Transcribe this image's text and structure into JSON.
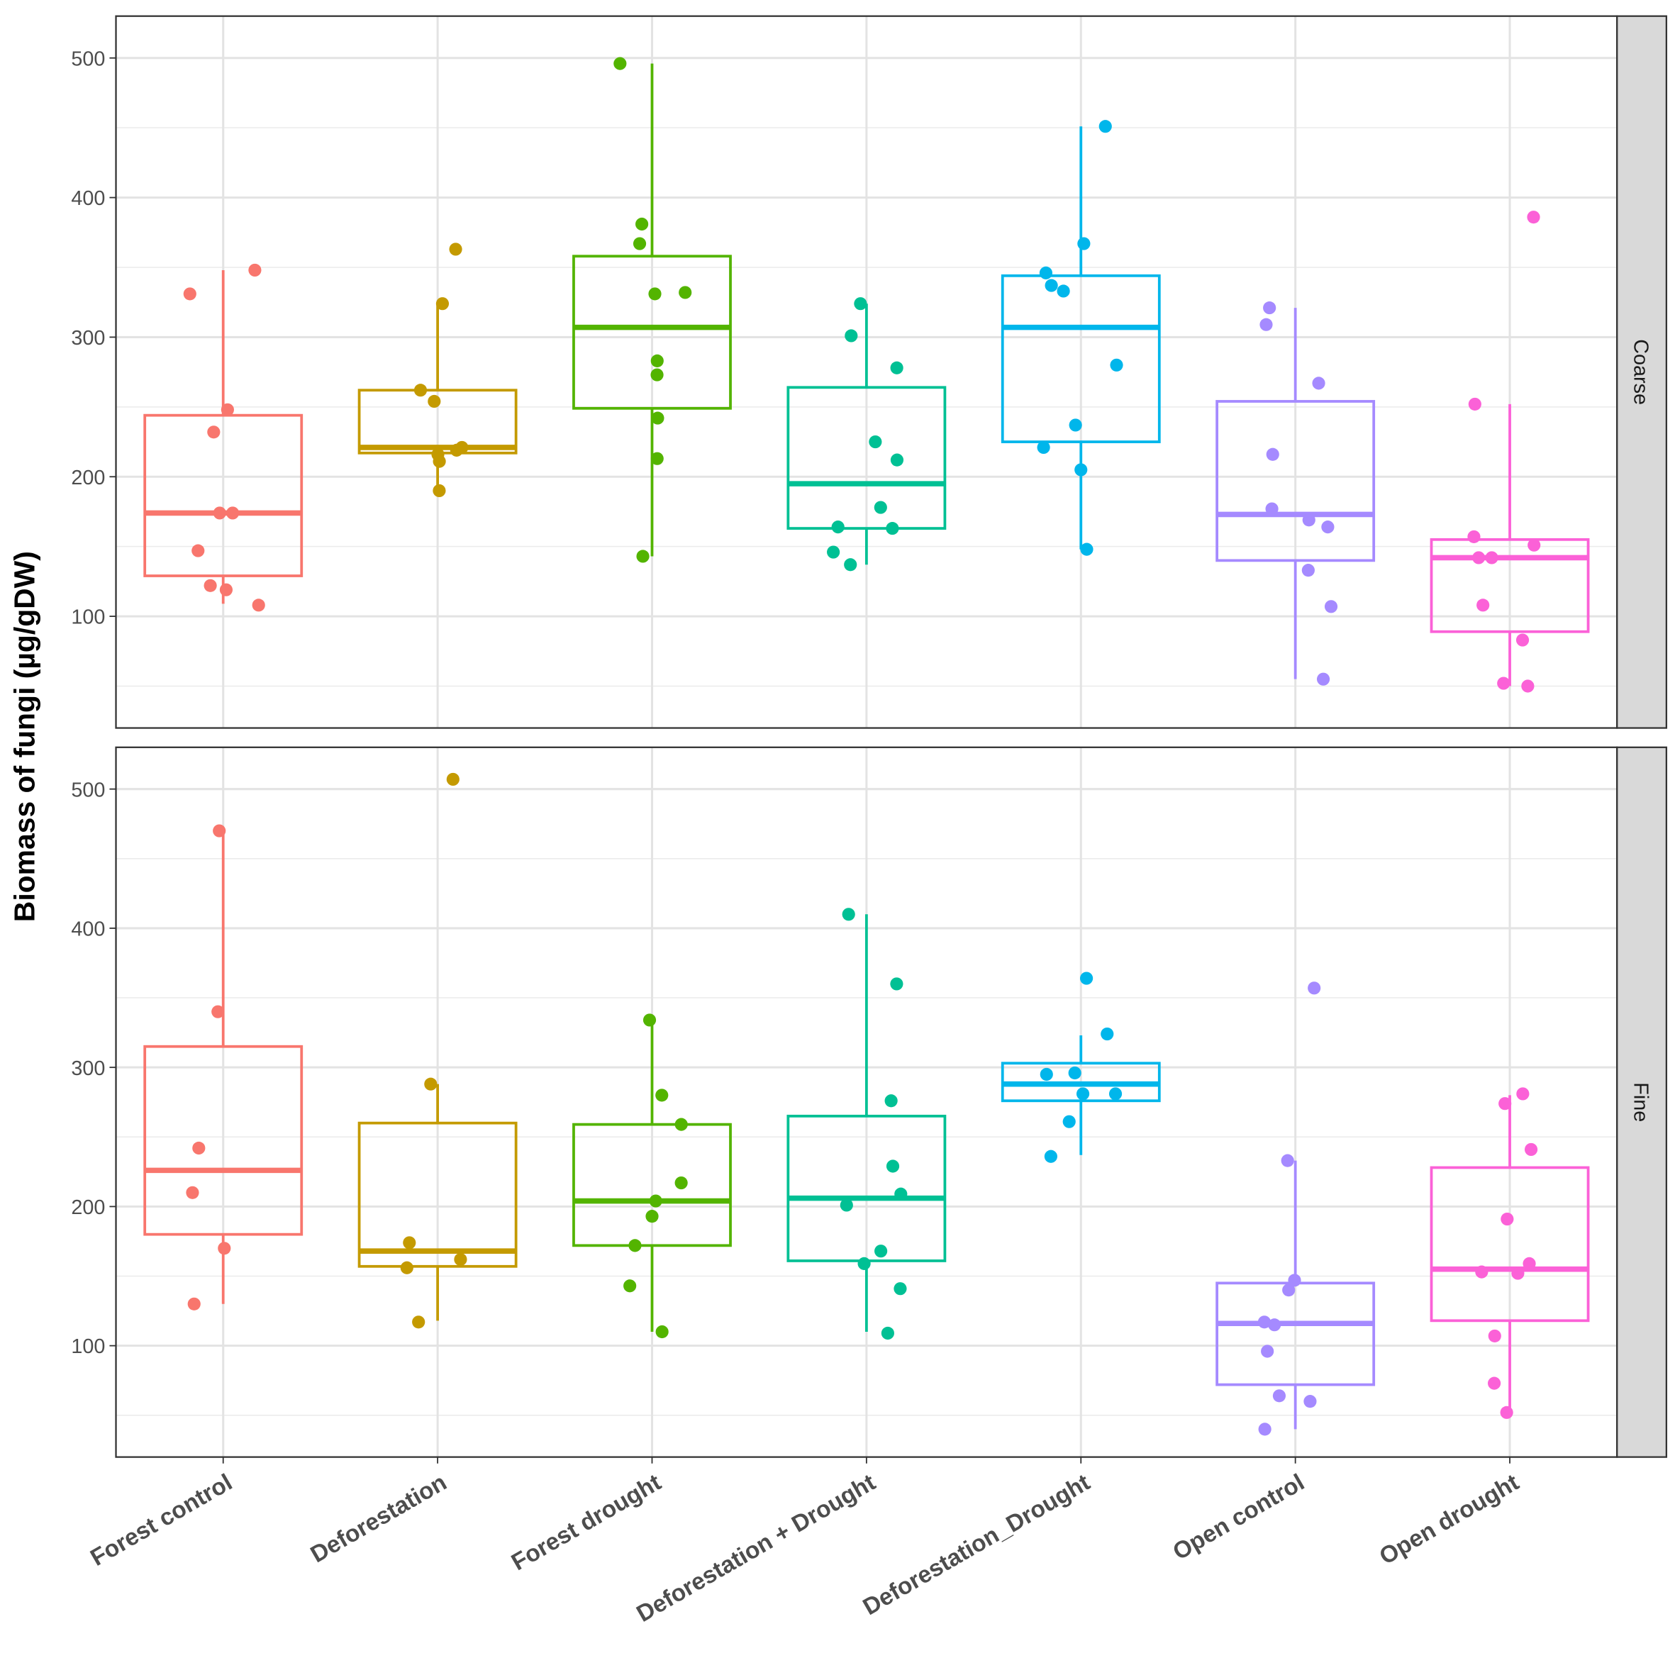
{
  "chart_data": {
    "type": "boxplot",
    "ylabel": "Biomass of fungi (µg/gDW)",
    "xlabel": "",
    "categories": [
      "Forest control",
      "Deforestation",
      "Forest drought",
      "Deforestation + Drought",
      "Deforestation_Drought",
      "Open control",
      "Open drought"
    ],
    "colors": [
      "#F8766D",
      "#C49A00",
      "#53B400",
      "#00C094",
      "#00B6EB",
      "#A58AFF",
      "#FB61D7"
    ],
    "ylim": [
      20,
      530
    ],
    "yticks": [
      100,
      200,
      300,
      400,
      500
    ],
    "grid": true,
    "legend": "none",
    "panels": [
      {
        "label": "Coarse",
        "boxes": [
          {
            "min": 109,
            "q1": 129,
            "median": 174,
            "q3": 244,
            "max": 348
          },
          {
            "min": 190,
            "q1": 217,
            "median": 221,
            "q3": 262,
            "max": 324
          },
          {
            "min": 143,
            "q1": 249,
            "median": 307,
            "q3": 358,
            "max": 496
          },
          {
            "min": 137,
            "q1": 163,
            "median": 195,
            "q3": 264,
            "max": 324
          },
          {
            "min": 148,
            "q1": 225,
            "median": 307,
            "q3": 344,
            "max": 451
          },
          {
            "min": 55,
            "q1": 140,
            "median": 173,
            "q3": 254,
            "max": 321
          },
          {
            "min": 50,
            "q1": 89,
            "median": 142,
            "q3": 155,
            "max": 252
          }
        ],
        "points": [
          [
            348,
            331,
            248,
            232,
            174,
            174,
            147,
            122,
            119,
            108
          ],
          [
            363,
            324,
            254,
            262,
            221,
            219,
            216,
            211,
            190
          ],
          [
            496,
            381,
            367,
            332,
            331,
            283,
            273,
            242,
            213,
            143
          ],
          [
            324,
            301,
            278,
            225,
            212,
            178,
            164,
            163,
            146,
            137
          ],
          [
            451,
            367,
            346,
            337,
            333,
            280,
            237,
            221,
            205,
            148
          ],
          [
            321,
            309,
            267,
            216,
            177,
            169,
            164,
            133,
            107,
            55
          ],
          [
            386,
            252,
            157,
            151,
            142,
            142,
            108,
            83,
            52,
            50
          ]
        ]
      },
      {
        "label": "Fine",
        "boxes": [
          {
            "min": 130,
            "q1": 180,
            "median": 226,
            "q3": 315,
            "max": 470
          },
          {
            "min": 118,
            "q1": 157,
            "median": 168,
            "q3": 260,
            "max": 288
          },
          {
            "min": 110,
            "q1": 172,
            "median": 204,
            "q3": 259,
            "max": 334
          },
          {
            "min": 110,
            "q1": 161,
            "median": 206,
            "q3": 265,
            "max": 410
          },
          {
            "min": 237,
            "q1": 276,
            "median": 288,
            "q3": 303,
            "max": 323
          },
          {
            "min": 40,
            "q1": 72,
            "median": 116,
            "q3": 145,
            "max": 233
          },
          {
            "min": 53,
            "q1": 118,
            "median": 155,
            "q3": 228,
            "max": 280
          }
        ],
        "points": [
          [
            470,
            340,
            242,
            210,
            170,
            130
          ],
          [
            507,
            288,
            174,
            162,
            156,
            117
          ],
          [
            334,
            280,
            259,
            217,
            204,
            193,
            172,
            143,
            110
          ],
          [
            410,
            360,
            276,
            229,
            209,
            201,
            168,
            159,
            141,
            109
          ],
          [
            364,
            324,
            296,
            295,
            281,
            281,
            261,
            236
          ],
          [
            357,
            233,
            147,
            140,
            117,
            115,
            96,
            64,
            60,
            40
          ],
          [
            281,
            274,
            241,
            191,
            159,
            153,
            152,
            107,
            73,
            52
          ]
        ]
      }
    ]
  }
}
